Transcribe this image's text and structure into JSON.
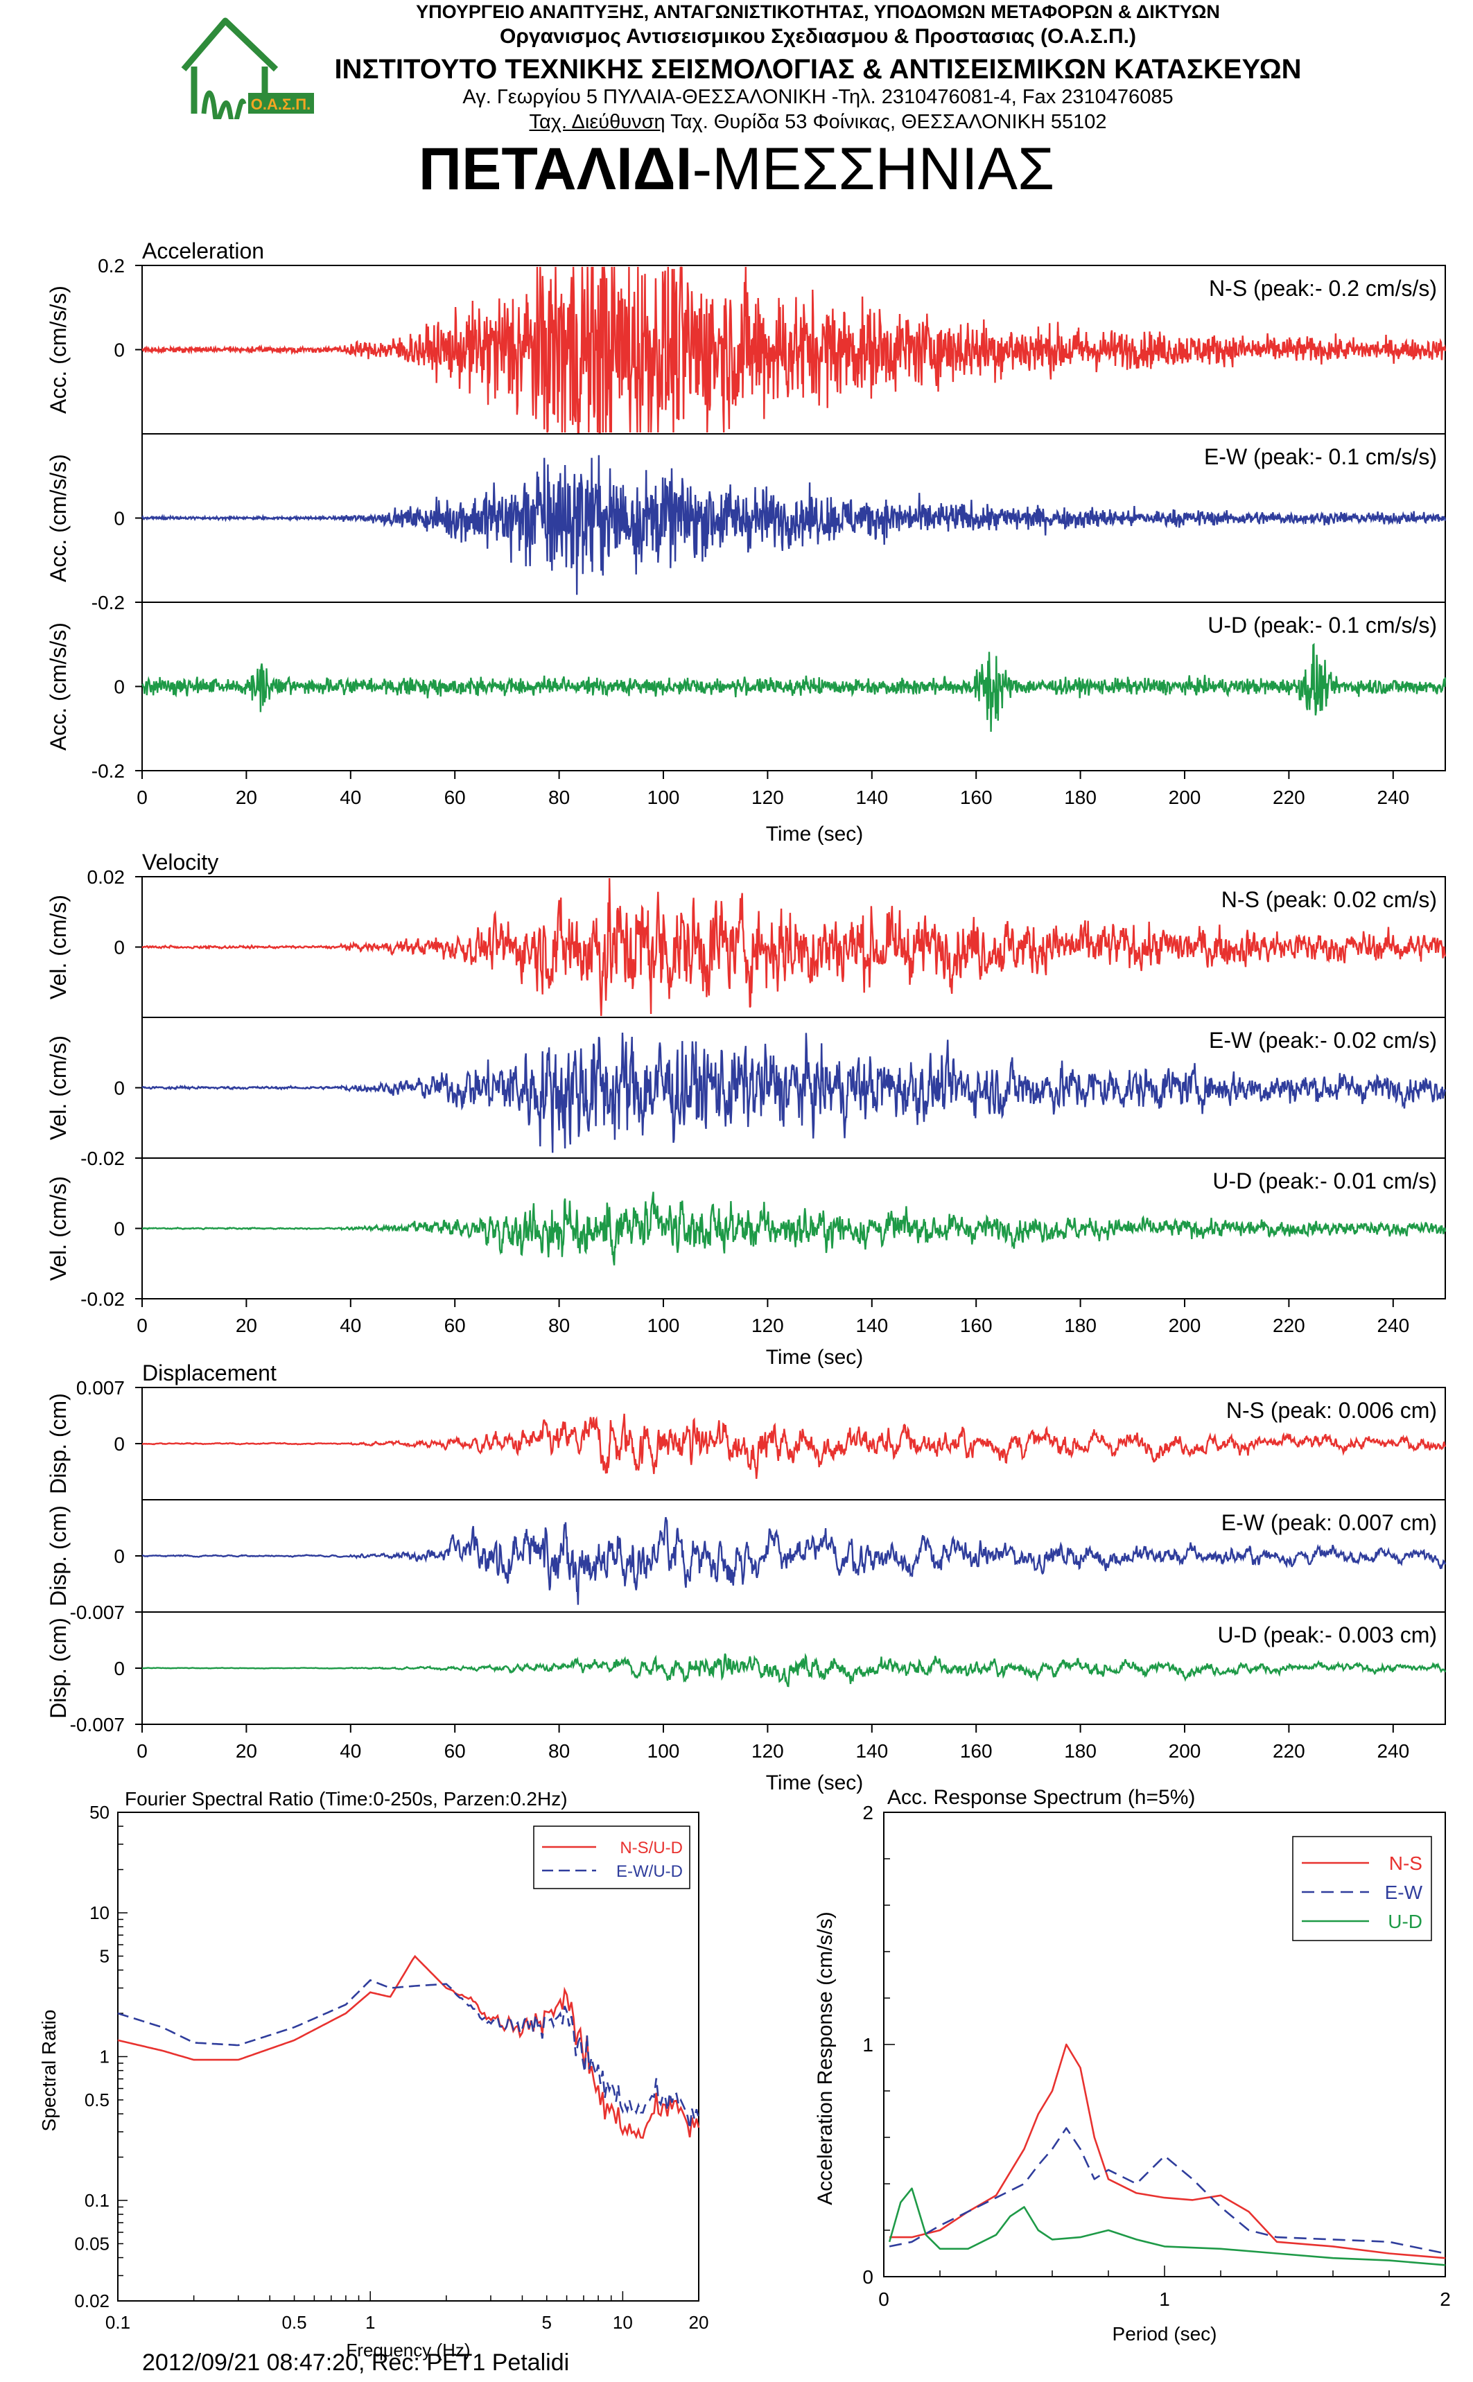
{
  "header": {
    "line1": "ΥΠΟΥΡΓΕΙΟ ΑΝΑΠΤΥΞΗΣ, ΑΝΤΑΓΩΝΙΣΤΙΚΟΤΗΤΑΣ, ΥΠΟΔΟΜΩΝ ΜΕΤΑΦΟΡΩΝ & ΔΙΚΤΥΩΝ",
    "line2": "Οργανισμος Αντισεισμικου Σχεδιασμου & Προστασιας (Ο.Α.Σ.Π.)",
    "line3": "ΙΝΣΤΙΤΟΥΤΟ ΤΕΧΝΙΚΗΣ ΣΕΙΣΜΟΛΟΓΙΑΣ & ΑΝΤΙΣΕΙΣΜΙΚΩΝ ΚΑΤΑΣΚΕΥΩΝ",
    "line4": "Αγ. Γεωργίου 5 ΠΥΛΑΙΑ-ΘΕΣΣΑΛΟΝΙΚΗ -Τηλ. 2310476081-4,  Fax 2310476085",
    "line5_underlined": "Ταχ. Διεύθυνση",
    "line5_rest": " Ταχ. Θυρίδα 53 Φοίνικας, ΘΕΣΣΑΛΟΝΙΚΗ 55102",
    "logo_text": "Ο.Α.Σ.Π.",
    "title_bold": "ΠΕΤΑΛΙΔΙ",
    "title_rest": "-ΜΕΣΣΗΝΙΑΣ"
  },
  "colors": {
    "ns": "#e8322f",
    "ew": "#2f3d9c",
    "ud": "#1e9a47",
    "logo": "#2e8b3a",
    "logo_text": "#f5a623"
  },
  "footer": {
    "text": "2012/09/21 08:47:20, Rec: PET1 Petalidi"
  },
  "chart_data": [
    {
      "type": "line",
      "title": "Acceleration",
      "xlabel": "Time (sec)",
      "ylabel": "Acc. (cm/s/s)",
      "xlim": [
        0,
        250
      ],
      "ylim": [
        -0.2,
        0.2
      ],
      "x_ticks": [
        "0",
        "20",
        "40",
        "60",
        "80",
        "100",
        "120",
        "140",
        "160",
        "180",
        "200",
        "220",
        "240"
      ],
      "y_ticks": [
        "0.2",
        "0",
        "-0.2"
      ],
      "panels": [
        {
          "name": "N-S",
          "label": "N-S (peak:- 0.2 cm/s/s)",
          "peak": -0.2,
          "onset": 38,
          "max_at": 85,
          "color": "ns"
        },
        {
          "name": "E-W",
          "label": "E-W (peak:- 0.1 cm/s/s)",
          "peak": -0.1,
          "onset": 38,
          "max_at": 80,
          "color": "ew"
        },
        {
          "name": "U-D",
          "label": "U-D (peak:- 0.1 cm/s/s)",
          "peak": -0.1,
          "onset": 22,
          "max_at": 165,
          "color": "ud"
        }
      ]
    },
    {
      "type": "line",
      "title": "Velocity",
      "xlabel": "Time (sec)",
      "ylabel": "Vel. (cm/s)",
      "xlim": [
        0,
        250
      ],
      "ylim": [
        -0.02,
        0.02
      ],
      "x_ticks": [
        "0",
        "20",
        "40",
        "60",
        "80",
        "100",
        "120",
        "140",
        "160",
        "180",
        "200",
        "220",
        "240"
      ],
      "y_ticks": [
        "0.02",
        "0",
        "-0.02"
      ],
      "panels": [
        {
          "name": "N-S",
          "label": "N-S (peak: 0.02 cm/s)",
          "peak": 0.02,
          "onset": 38,
          "max_at": 88,
          "color": "ns"
        },
        {
          "name": "E-W",
          "label": "E-W (peak:- 0.02 cm/s)",
          "peak": -0.02,
          "onset": 38,
          "max_at": 82,
          "color": "ew"
        },
        {
          "name": "U-D",
          "label": "U-D (peak:- 0.01 cm/s)",
          "peak": -0.01,
          "onset": 38,
          "max_at": 80,
          "color": "ud"
        }
      ]
    },
    {
      "type": "line",
      "title": "Displacement",
      "xlabel": "Time (sec)",
      "ylabel": "Disp. (cm)",
      "xlim": [
        0,
        250
      ],
      "ylim": [
        -0.007,
        0.007
      ],
      "x_ticks": [
        "0",
        "20",
        "40",
        "60",
        "80",
        "100",
        "120",
        "140",
        "160",
        "180",
        "200",
        "220",
        "240"
      ],
      "y_ticks": [
        "0.007",
        "0",
        "-0.007"
      ],
      "panels": [
        {
          "name": "N-S",
          "label": "N-S (peak: 0.006 cm)",
          "peak": 0.006,
          "onset": 40,
          "max_at": 90,
          "color": "ns"
        },
        {
          "name": "E-W",
          "label": "E-W (peak: 0.007 cm)",
          "peak": 0.007,
          "onset": 40,
          "max_at": 74,
          "color": "ew"
        },
        {
          "name": "U-D",
          "label": "U-D (peak:- 0.003 cm)",
          "peak": -0.003,
          "onset": 40,
          "max_at": 110,
          "color": "ud"
        }
      ]
    },
    {
      "type": "line",
      "title": "Fourier Spectral Ratio (Time:0-250s, Parzen:0.2Hz)",
      "xlabel": "Frequency (Hz)",
      "ylabel": "Spectral Ratio",
      "xscale": "log",
      "yscale": "log",
      "xlim": [
        0.1,
        20
      ],
      "ylim": [
        0.02,
        50
      ],
      "x_ticks": [
        "0.1",
        "0.5",
        "1",
        "5",
        "10",
        "20"
      ],
      "y_ticks": [
        "50",
        "10",
        "5",
        "1",
        "0.5",
        "0.1",
        "0.05",
        "0.02"
      ],
      "legend": "top-right",
      "series": [
        {
          "name": "N-S/U-D",
          "color": "ns",
          "dash": false,
          "x": [
            0.1,
            0.15,
            0.2,
            0.3,
            0.5,
            0.8,
            1.0,
            1.2,
            1.5,
            2.0,
            2.5,
            3.0,
            4.0,
            5.0,
            6.0,
            7.0,
            8.0,
            10.0,
            12.0,
            15.0,
            20.0
          ],
          "y": [
            1.3,
            1.1,
            0.95,
            0.95,
            1.3,
            2.0,
            2.8,
            2.6,
            5.0,
            3.0,
            2.5,
            1.8,
            1.5,
            2.0,
            2.5,
            1.1,
            0.5,
            0.35,
            0.3,
            0.5,
            0.3
          ]
        },
        {
          "name": "E-W/U-D",
          "color": "ew",
          "dash": true,
          "x": [
            0.1,
            0.15,
            0.2,
            0.3,
            0.5,
            0.8,
            1.0,
            1.2,
            1.5,
            2.0,
            2.5,
            3.0,
            4.0,
            5.0,
            6.0,
            7.0,
            8.0,
            10.0,
            12.0,
            15.0,
            20.0
          ],
          "y": [
            2.0,
            1.6,
            1.25,
            1.2,
            1.6,
            2.3,
            3.4,
            3.0,
            3.1,
            3.2,
            2.2,
            1.7,
            1.6,
            1.8,
            1.9,
            1.0,
            0.7,
            0.5,
            0.45,
            0.55,
            0.35
          ]
        }
      ]
    },
    {
      "type": "line",
      "title": "Acc. Response Spectrum (h=5%)",
      "xlabel": "Period (sec)",
      "ylabel": "Acceleration Response (cm/s/s)",
      "xlim": [
        0,
        2
      ],
      "ylim": [
        0,
        2
      ],
      "x_ticks": [
        "0",
        "1",
        "2"
      ],
      "y_ticks": [
        "2",
        "1",
        "0"
      ],
      "legend": "top-right",
      "series": [
        {
          "name": "N-S",
          "color": "ns",
          "dash": false,
          "x": [
            0.02,
            0.1,
            0.2,
            0.3,
            0.4,
            0.5,
            0.55,
            0.6,
            0.65,
            0.7,
            0.75,
            0.8,
            0.9,
            1.0,
            1.1,
            1.2,
            1.3,
            1.4,
            1.6,
            1.8,
            2.0
          ],
          "y": [
            0.17,
            0.17,
            0.2,
            0.28,
            0.35,
            0.55,
            0.7,
            0.8,
            1.0,
            0.9,
            0.6,
            0.42,
            0.36,
            0.34,
            0.33,
            0.35,
            0.28,
            0.15,
            0.13,
            0.1,
            0.08
          ]
        },
        {
          "name": "E-W",
          "color": "ew",
          "dash": true,
          "x": [
            0.02,
            0.1,
            0.2,
            0.3,
            0.4,
            0.5,
            0.55,
            0.6,
            0.65,
            0.7,
            0.75,
            0.8,
            0.9,
            1.0,
            1.1,
            1.2,
            1.3,
            1.4,
            1.6,
            1.8,
            2.0
          ],
          "y": [
            0.13,
            0.15,
            0.22,
            0.28,
            0.34,
            0.4,
            0.48,
            0.55,
            0.64,
            0.55,
            0.42,
            0.46,
            0.4,
            0.52,
            0.42,
            0.3,
            0.2,
            0.17,
            0.16,
            0.15,
            0.1
          ]
        },
        {
          "name": "U-D",
          "color": "ud",
          "dash": false,
          "x": [
            0.02,
            0.06,
            0.1,
            0.15,
            0.2,
            0.3,
            0.4,
            0.45,
            0.5,
            0.55,
            0.6,
            0.7,
            0.8,
            0.9,
            1.0,
            1.2,
            1.4,
            1.6,
            1.8,
            2.0
          ],
          "y": [
            0.15,
            0.32,
            0.38,
            0.18,
            0.12,
            0.12,
            0.18,
            0.26,
            0.3,
            0.2,
            0.16,
            0.17,
            0.2,
            0.16,
            0.13,
            0.12,
            0.1,
            0.08,
            0.07,
            0.05
          ]
        }
      ]
    }
  ]
}
